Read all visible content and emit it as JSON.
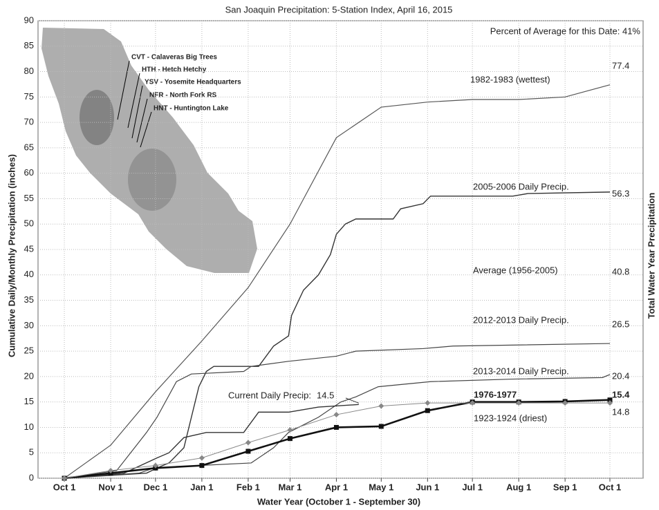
{
  "chart_data": {
    "type": "line",
    "title": "San Joaquin Precipitation: 5-Station Index, April 16, 2015",
    "x_label": "Water Year (October 1 - September 30)",
    "y_label": "Cumulative Daily/Monthly Precipitation (inches)",
    "y2_label": "Total Water Year Precipitation",
    "xlim": [
      -17.6,
      387.2
    ],
    "ylim": [
      0,
      90
    ],
    "grid": true,
    "xticks": [
      {
        "value": 0,
        "label": "Oct 1"
      },
      {
        "value": 31,
        "label": "Nov 1"
      },
      {
        "value": 61,
        "label": "Dec 1"
      },
      {
        "value": 92,
        "label": "Jan 1"
      },
      {
        "value": 123,
        "label": "Feb 1"
      },
      {
        "value": 151,
        "label": "Mar 1"
      },
      {
        "value": 182,
        "label": "Apr 1"
      },
      {
        "value": 212,
        "label": "May 1"
      },
      {
        "value": 243,
        "label": "Jun 1"
      },
      {
        "value": 273,
        "label": "Jul 1"
      },
      {
        "value": 304,
        "label": "Aug 1"
      },
      {
        "value": 335,
        "label": "Sep 1"
      },
      {
        "value": 365,
        "label": "Oct 1"
      }
    ],
    "yticks": [
      0,
      5,
      10,
      15,
      20,
      25,
      30,
      35,
      40,
      45,
      50,
      55,
      60,
      65,
      70,
      75,
      80,
      85,
      90
    ],
    "series": [
      {
        "name": "1982-1983 (wettest)",
        "color": "#555555",
        "marker": "none",
        "x": [
          0,
          31,
          61,
          92,
          123,
          151,
          182,
          212,
          243,
          273,
          304,
          335,
          365
        ],
        "values": [
          0,
          6.5,
          17,
          27,
          37.5,
          50,
          67,
          73,
          74,
          74.5,
          74.5,
          75,
          77.4
        ]
      },
      {
        "name": "2005-2006 Daily Precip.",
        "color": "#333333",
        "marker": "none",
        "x": [
          0,
          55,
          62,
          70,
          80,
          85,
          90,
          95,
          100,
          130,
          140,
          150,
          152,
          160,
          170,
          178,
          182,
          188,
          195,
          220,
          225,
          240,
          245,
          300,
          310,
          365
        ],
        "values": [
          0,
          1,
          2,
          3,
          6,
          12,
          18,
          21,
          22,
          22,
          26,
          28,
          32,
          37,
          40,
          44,
          48,
          50,
          51,
          51,
          53,
          54,
          55.5,
          55.5,
          56,
          56.3
        ]
      },
      {
        "name": "2012-2013 Daily Precip.",
        "color": "#444444",
        "marker": "none",
        "x": [
          0,
          35,
          55,
          62,
          75,
          85,
          120,
          125,
          150,
          182,
          195,
          240,
          260,
          365
        ],
        "values": [
          0,
          1.5,
          9,
          12,
          19,
          20.5,
          21,
          22,
          23,
          24,
          25,
          25.5,
          26,
          26.5
        ]
      },
      {
        "name": "2013-2014 Daily Precip.",
        "color": "#444444",
        "marker": "none",
        "x": [
          0,
          50,
          60,
          90,
          125,
          140,
          150,
          170,
          185,
          195,
          210,
          245,
          300,
          360,
          365
        ],
        "values": [
          0,
          1,
          2,
          2.5,
          3,
          6,
          9,
          12,
          15,
          16,
          18,
          19,
          19.5,
          19.8,
          20.4
        ]
      },
      {
        "name": "Current Daily Precip:",
        "color": "#333333",
        "marker": "none",
        "x": [
          0,
          40,
          62,
          70,
          80,
          95,
          120,
          130,
          150,
          170,
          197
        ],
        "values": [
          0,
          1,
          4,
          5,
          8,
          9,
          9,
          13,
          13,
          14,
          14.5
        ]
      },
      {
        "name": "1976-1977",
        "color": "#111111",
        "marker": "square",
        "x": [
          0,
          31,
          61,
          92,
          123,
          151,
          182,
          212,
          243,
          273,
          304,
          335,
          365
        ],
        "values": [
          0,
          1,
          2,
          2.5,
          5.3,
          7.8,
          10,
          10.2,
          13.3,
          15,
          15,
          15.1,
          15.4
        ]
      },
      {
        "name": "1923-1924 (driest)",
        "color": "#888888",
        "marker": "diamond",
        "x": [
          0,
          31,
          61,
          92,
          123,
          151,
          182,
          212,
          243,
          273,
          304,
          335,
          365
        ],
        "values": [
          0,
          1.5,
          2.5,
          4,
          7,
          9.5,
          12.5,
          14.2,
          14.8,
          14.8,
          14.8,
          14.8,
          14.8
        ]
      }
    ],
    "annotations": [
      {
        "text": "Percent of Average for this Date: 41%"
      },
      {
        "text": "Average (1956-2005)",
        "total": 40.8
      }
    ],
    "map_labels": [
      "CVT - Calaveras Big Trees",
      "HTH - Hetch Hetchy",
      "YSV - Yosemite Headquarters",
      "NFR - North Fork RS",
      "HNT - Huntington Lake"
    ]
  }
}
